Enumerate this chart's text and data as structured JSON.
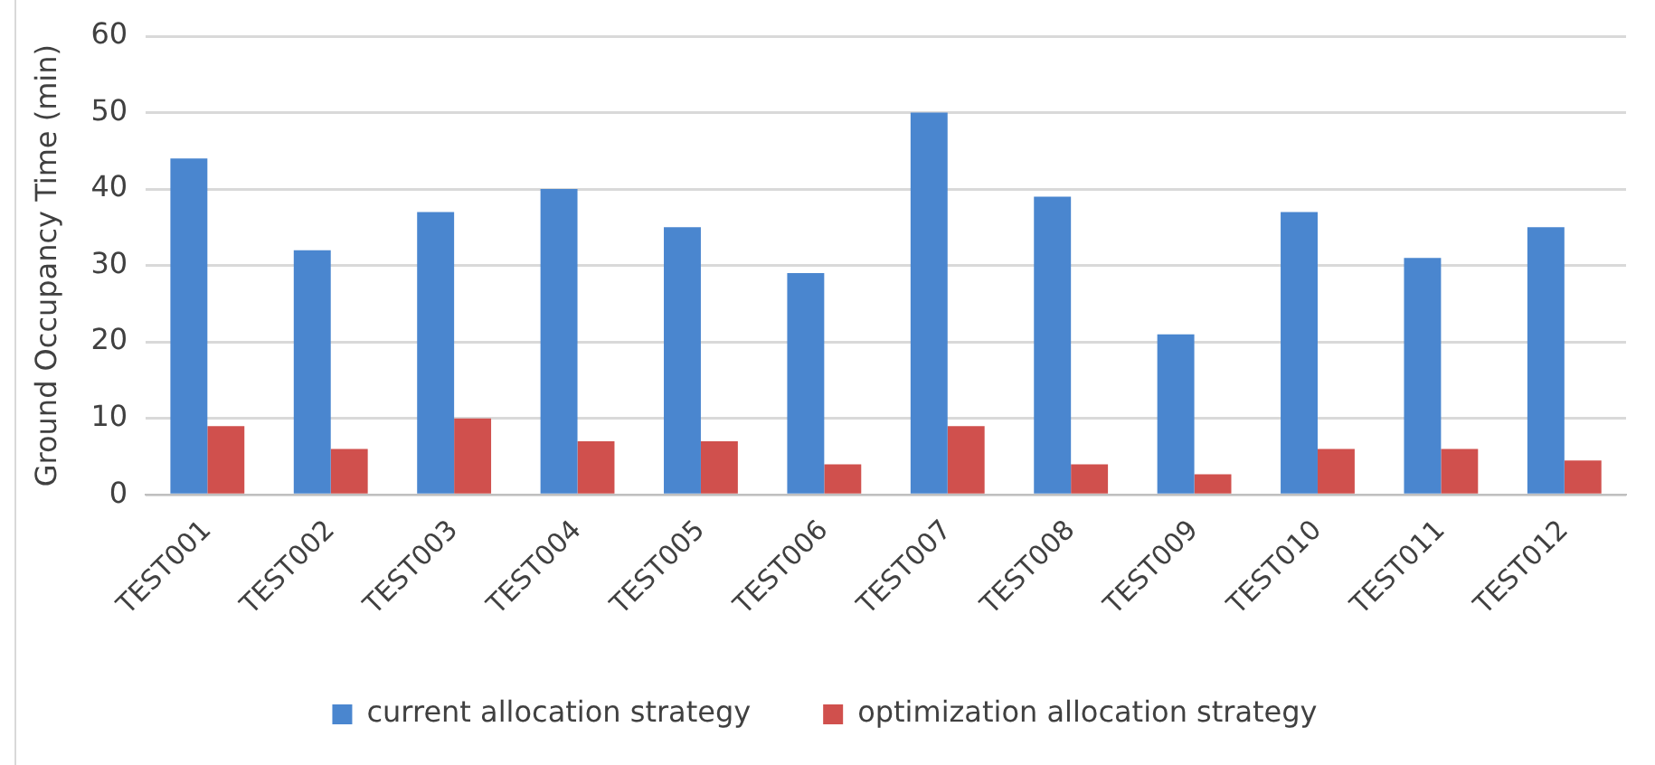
{
  "chart_data": {
    "type": "bar",
    "ylabel": "Ground Occupancy Time (min)",
    "categories": [
      "TEST001",
      "TEST002",
      "TEST003",
      "TEST004",
      "TEST005",
      "TEST006",
      "TEST007",
      "TEST008",
      "TEST009",
      "TEST010",
      "TEST011",
      "TEST012"
    ],
    "series": [
      {
        "name": "current allocation strategy",
        "color": "#4a86cf",
        "values": [
          44,
          32,
          37,
          40,
          35,
          29,
          50,
          39,
          21,
          37,
          31,
          35
        ]
      },
      {
        "name": "optimization allocation strategy",
        "color": "#d0504d",
        "values": [
          9,
          6,
          10,
          7,
          7,
          4,
          9,
          4,
          2.7,
          6,
          6,
          4.5
        ]
      }
    ],
    "ylim": [
      0,
      60
    ],
    "yticks": [
      0,
      10,
      20,
      30,
      40,
      50,
      60
    ],
    "grid": "y",
    "legend": "bottom"
  }
}
